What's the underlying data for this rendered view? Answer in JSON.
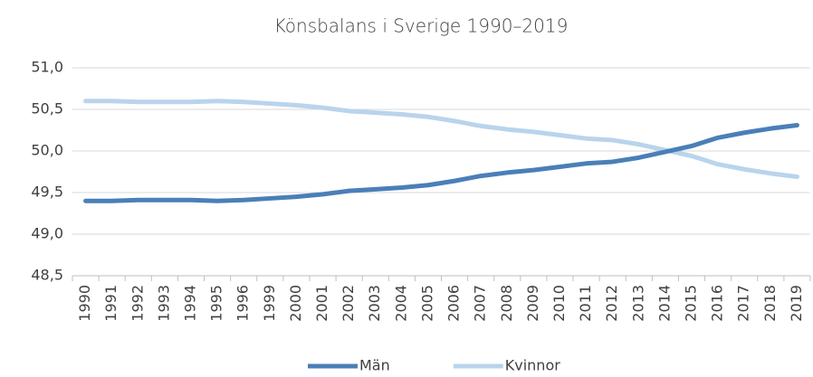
{
  "chart_data": {
    "type": "line",
    "title": "Könsbalans i Sverige 1990–2019",
    "categories": [
      "1990",
      "1991",
      "1992",
      "1993",
      "1994",
      "1995",
      "1996",
      "1999",
      "2000",
      "2001",
      "2002",
      "2003",
      "2004",
      "2005",
      "2006",
      "2007",
      "2008",
      "2009",
      "2010",
      "2011",
      "2012",
      "2013",
      "2014",
      "2015",
      "2016",
      "2017",
      "2018",
      "2019"
    ],
    "series": [
      {
        "name": "Män",
        "color": "#4a7fb8",
        "values": [
          49.4,
          49.4,
          49.41,
          49.41,
          49.41,
          49.4,
          49.41,
          49.43,
          49.45,
          49.48,
          49.52,
          49.54,
          49.56,
          49.59,
          49.64,
          49.7,
          49.74,
          49.77,
          49.81,
          49.85,
          49.87,
          49.92,
          49.99,
          50.06,
          50.16,
          50.22,
          50.27,
          50.31
        ]
      },
      {
        "name": "Kvinnor",
        "color": "#b9d4ec",
        "values": [
          50.6,
          50.6,
          50.59,
          50.59,
          50.59,
          50.6,
          50.59,
          50.57,
          50.55,
          50.52,
          50.48,
          50.46,
          50.44,
          50.41,
          50.36,
          50.3,
          50.26,
          50.23,
          50.19,
          50.15,
          50.13,
          50.08,
          50.01,
          49.94,
          49.84,
          49.78,
          49.73,
          49.69
        ]
      }
    ],
    "ylim": [
      48.5,
      51
    ],
    "yticks": [
      {
        "value": 48.5,
        "label": "48,5"
      },
      {
        "value": 49,
        "label": "49,0"
      },
      {
        "value": 49.5,
        "label": "49,5"
      },
      {
        "value": 50,
        "label": "50,0"
      },
      {
        "value": 50.5,
        "label": "50,5"
      },
      {
        "value": 51,
        "label": "51,0"
      }
    ],
    "grid": true,
    "legend": "bottom"
  }
}
